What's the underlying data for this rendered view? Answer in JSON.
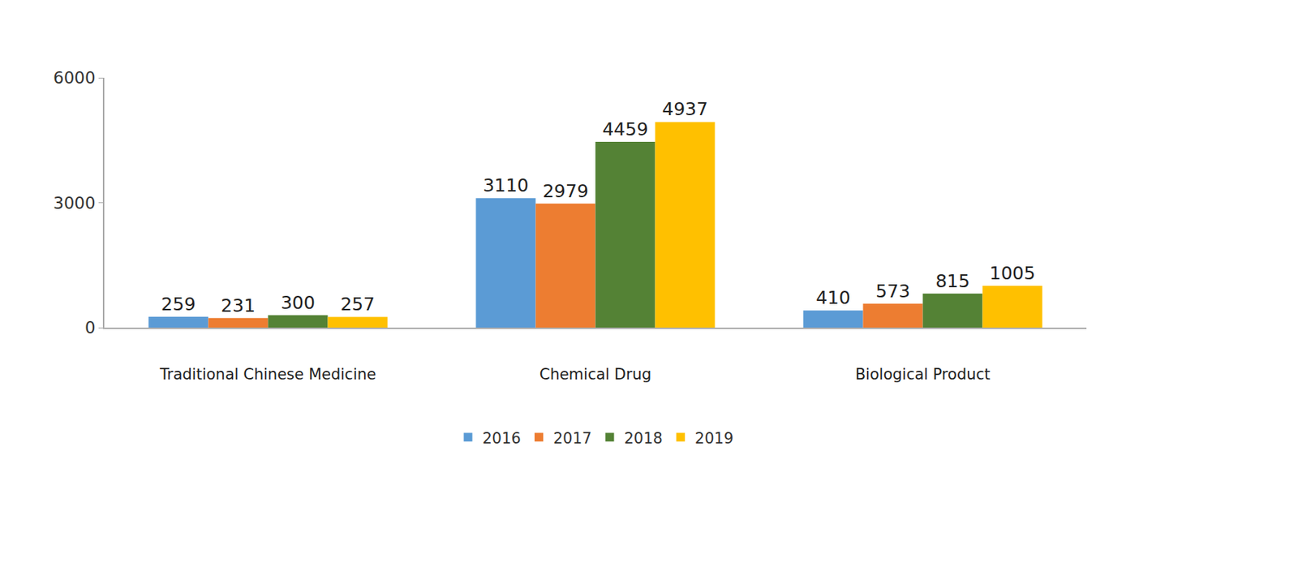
{
  "chart_data": {
    "type": "bar",
    "categories": [
      "Traditional Chinese Medicine",
      "Chemical Drug",
      "Biological Product"
    ],
    "series": [
      {
        "name": "2016",
        "color": "#5b9bd5",
        "values": [
          259,
          3110,
          410
        ]
      },
      {
        "name": "2017",
        "color": "#ed7d31",
        "values": [
          231,
          2979,
          573
        ]
      },
      {
        "name": "2018",
        "color": "#548235",
        "values": [
          300,
          4459,
          815
        ]
      },
      {
        "name": "2019",
        "color": "#ffc000",
        "values": [
          257,
          4937,
          1005
        ]
      }
    ],
    "ylim": [
      0,
      6000
    ],
    "yticks": [
      0,
      3000,
      6000
    ],
    "grid": false,
    "legend": "bottom",
    "data_labels": true
  }
}
